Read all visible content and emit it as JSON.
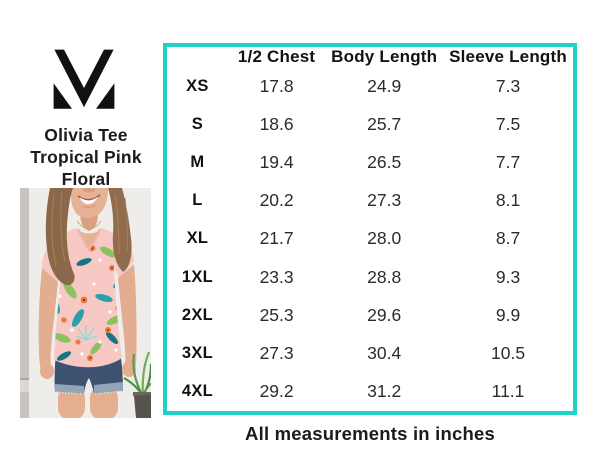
{
  "product": {
    "title_lines": [
      "Olivia Tee",
      "Tropical Pink",
      "Floral"
    ]
  },
  "brand": {
    "logo_icon": "m-logo"
  },
  "photo": {
    "alt": "Model wearing pink tropical floral v-neck tee with denim shorts"
  },
  "size_chart": {
    "corner_label": "",
    "columns": [
      "1/2 Chest",
      "Body Length",
      "Sleeve Length"
    ],
    "rows": [
      {
        "size": "XS",
        "values": [
          "17.8",
          "24.9",
          "7.3"
        ]
      },
      {
        "size": "S",
        "values": [
          "18.6",
          "25.7",
          "7.5"
        ]
      },
      {
        "size": "M",
        "values": [
          "19.4",
          "26.5",
          "7.7"
        ]
      },
      {
        "size": "L",
        "values": [
          "20.2",
          "27.3",
          "8.1"
        ]
      },
      {
        "size": "XL",
        "values": [
          "21.7",
          "28.0",
          "8.7"
        ]
      },
      {
        "size": "1XL",
        "values": [
          "23.3",
          "28.8",
          "9.3"
        ]
      },
      {
        "size": "2XL",
        "values": [
          "25.3",
          "29.6",
          "9.9"
        ]
      },
      {
        "size": "3XL",
        "values": [
          "27.3",
          "30.4",
          "10.5"
        ]
      },
      {
        "size": "4XL",
        "values": [
          "29.2",
          "31.2",
          "11.1"
        ]
      }
    ]
  },
  "footer": {
    "note": "All measurements in inches"
  },
  "colors": {
    "accent_teal": "#1fd2c6",
    "text": "#161616",
    "shirt_pink": "#f8c8c4"
  }
}
